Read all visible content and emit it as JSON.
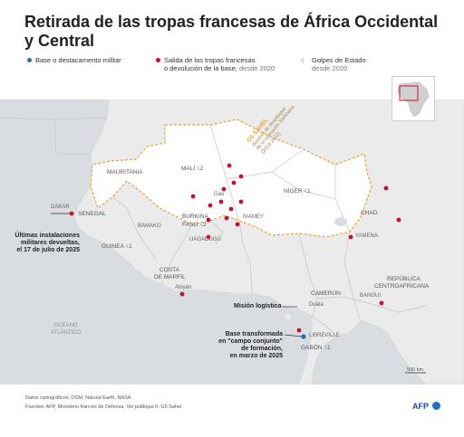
{
  "title": "Retirada de las tropas francesas de África Occidental y Central",
  "legend": {
    "base": "Base o destacamento militar",
    "withdrawal_line1": "Salida de las tropas francesas",
    "withdrawal_line2": "o devolución de la base,",
    "withdrawal_since": "desde 2020",
    "coup_line1": "Golpes de Estado",
    "coup_since": "desde 2020"
  },
  "colors": {
    "base": "#1a6fb5",
    "withdrawal": "#c8102e",
    "coup": "#888888",
    "sahel": "#e8a33a",
    "land": "#ebebeb",
    "sea": "#d9dde2"
  },
  "icons": {
    "coup": "coup-icon"
  },
  "countries": {
    "mauritania": "MAURITANIA",
    "mali": "MALÍ",
    "niger": "NÍGER",
    "chad": "CHAD",
    "senegal": "SENEGAL",
    "burkina": "BURKINA",
    "faso": "FASO",
    "guinea": "GUINEA",
    "costa1": "COSTA",
    "costa2": "DE MARFIL",
    "camerun": "CAMERÚN",
    "rca1": "REPÚBLICA",
    "rca2": "CENTROAFRICANA",
    "gabon": "GABÓN"
  },
  "coup_counts": {
    "mali": "2",
    "niger": "1",
    "burkina": "2",
    "guinea": "1",
    "gabon": "1"
  },
  "cities": {
    "dakar": "DAKAR",
    "bamako": "BAMAKO",
    "gao": "Gao",
    "niamey": "NIAMEY",
    "uagadugu": "UAGADUGÚ",
    "abiyan": "Abiyán",
    "yamena": "YAMENA",
    "duala": "Duala",
    "bangui": "BANGUI",
    "libreville": "LIBREVILLE"
  },
  "sahel": {
    "label": "G5 SAHEL",
    "note1": "dominio de despliegue",
    "note2": "de la operación Barkhane",
    "note3": "(2014-2022)"
  },
  "ocean": {
    "line1": "OCÉANO",
    "line2": "ATLÁNTICO"
  },
  "annotations": {
    "senegal1": "Últimas instalaciones",
    "senegal2": "militares devueltas,",
    "senegal3": "el 17 de julio de 2025",
    "mision": "Misión logística",
    "gabon1": "Base transformada",
    "gabon2": "en \"campo conjunto\"",
    "gabon3": "de formación,",
    "gabon4": "en marzo de 2025"
  },
  "scale": "500 km",
  "footer": {
    "source_data": "Datos cartográficos: OSM, Natural Earth, NASA",
    "sources": "Fuentes: AFP, Ministerio francés de Defensa, Vie publique.fr, G5 Sahel"
  },
  "brand": "AFP"
}
